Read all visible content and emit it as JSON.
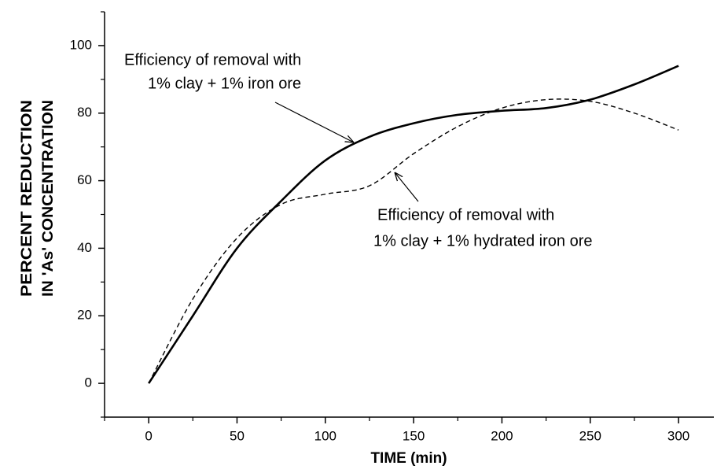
{
  "chart_data": {
    "type": "line",
    "x_label": "TIME (min)",
    "y_label": [
      "PERCENT REDUCTION",
      "IN 'As' CONCENTRATION"
    ],
    "annotations": [
      [
        "Efficiency of removal with",
        "1% clay + 1% iron ore"
      ],
      [
        "Efficiency of removal with",
        "1% clay + 1% hydrated iron ore"
      ]
    ],
    "x": [
      0,
      25,
      50,
      75,
      100,
      125,
      150,
      175,
      200,
      225,
      250,
      275,
      300
    ],
    "series": [
      {
        "color": "#000000",
        "dash": "solid",
        "values": [
          0,
          20,
          40,
          54,
          66,
          73,
          77,
          79.5,
          80.7,
          81.5,
          84,
          88.5,
          94
        ]
      },
      {
        "color": "#000000",
        "dash": "dashed",
        "values": [
          0,
          25,
          43,
          53,
          56,
          58.5,
          68,
          76,
          81.5,
          84,
          83.5,
          80,
          75
        ]
      }
    ],
    "xlim": [
      -25,
      320
    ],
    "ylim": [
      -10,
      110
    ],
    "xticks": [
      0,
      50,
      100,
      150,
      200,
      250,
      300
    ],
    "yticks": [
      0,
      20,
      40,
      60,
      80,
      100
    ],
    "xminorticks": [
      -25,
      25,
      75,
      125,
      175,
      225,
      275
    ],
    "yminorticks": [
      -10,
      10,
      30,
      50,
      70,
      90,
      110
    ]
  }
}
